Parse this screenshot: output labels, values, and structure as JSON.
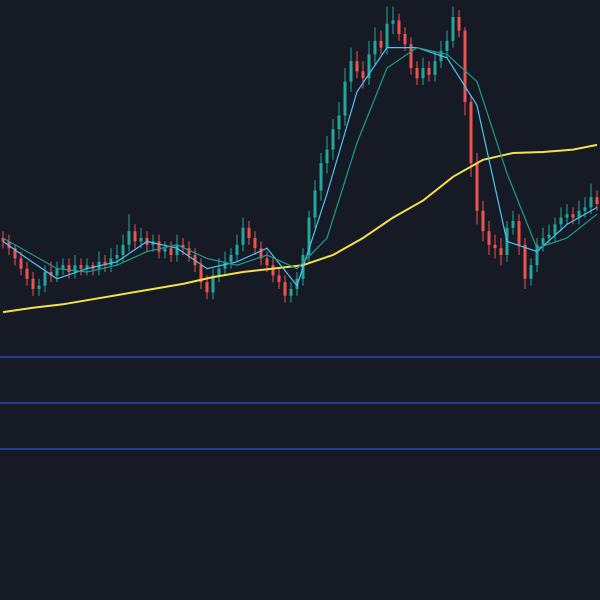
{
  "chart_data": [
    {
      "type": "candlestick",
      "up_color": "#26a69a",
      "down_color": "#ef5350",
      "ylim": [
        0,
        100
      ],
      "open": [
        30,
        29,
        27,
        24,
        21,
        18,
        15,
        16,
        20,
        19,
        21,
        22,
        20,
        22,
        21,
        22,
        21,
        23,
        22,
        24,
        25,
        28,
        32,
        29,
        30,
        28,
        29,
        26,
        27,
        25,
        28,
        27,
        25,
        22,
        17,
        14,
        19,
        21,
        23,
        25,
        28,
        33,
        30,
        27,
        24,
        22,
        19,
        17,
        13,
        15,
        18,
        25,
        36,
        44,
        52,
        56,
        62,
        66,
        76,
        82,
        79,
        77,
        84,
        88,
        86,
        93,
        94,
        90,
        87,
        80,
        77,
        80,
        78,
        82,
        85,
        88,
        95,
        91,
        70,
        52,
        38,
        32,
        28,
        27,
        25,
        33,
        35,
        28,
        18,
        22,
        28,
        30,
        31,
        34,
        36,
        37,
        36,
        38,
        39,
        42
      ],
      "high": [
        32,
        31,
        28,
        26,
        23,
        20,
        18,
        22,
        23,
        23,
        24,
        24,
        25,
        24,
        24,
        23,
        26,
        25,
        27,
        28,
        31,
        37,
        34,
        33,
        32,
        31,
        31,
        29,
        29,
        31,
        30,
        29,
        27,
        24,
        19,
        21,
        24,
        26,
        27,
        31,
        36,
        35,
        32,
        29,
        26,
        24,
        21,
        19,
        17,
        20,
        27,
        38,
        47,
        55,
        60,
        65,
        70,
        80,
        86,
        85,
        82,
        88,
        92,
        91,
        98,
        98,
        96,
        92,
        89,
        82,
        83,
        82,
        85,
        88,
        91,
        98,
        97,
        92,
        72,
        55,
        41,
        35,
        31,
        30,
        35,
        38,
        37,
        30,
        24,
        30,
        33,
        34,
        36,
        39,
        40,
        39,
        41,
        42,
        46,
        44
      ],
      "low": [
        27,
        25,
        22,
        19,
        16,
        13,
        13,
        14,
        17,
        17,
        19,
        18,
        18,
        19,
        19,
        19,
        19,
        20,
        20,
        22,
        23,
        26,
        27,
        27,
        26,
        26,
        24,
        24,
        23,
        23,
        25,
        23,
        20,
        15,
        12,
        12,
        17,
        19,
        21,
        23,
        26,
        28,
        25,
        22,
        20,
        17,
        15,
        11,
        11,
        13,
        16,
        23,
        33,
        41,
        49,
        53,
        59,
        63,
        73,
        77,
        74,
        75,
        81,
        84,
        84,
        90,
        88,
        85,
        78,
        75,
        75,
        76,
        76,
        80,
        83,
        86,
        89,
        66,
        48,
        34,
        29,
        25,
        24,
        22,
        23,
        31,
        25,
        15,
        16,
        20,
        26,
        28,
        29,
        32,
        34,
        34,
        34,
        36,
        37,
        38
      ],
      "close": [
        29,
        27,
        24,
        21,
        18,
        15,
        16,
        20,
        19,
        21,
        22,
        20,
        22,
        21,
        22,
        21,
        23,
        22,
        24,
        25,
        28,
        32,
        29,
        30,
        28,
        29,
        26,
        27,
        25,
        28,
        27,
        25,
        22,
        17,
        14,
        19,
        21,
        23,
        25,
        28,
        33,
        30,
        27,
        24,
        22,
        19,
        17,
        13,
        15,
        18,
        25,
        36,
        44,
        52,
        56,
        62,
        66,
        76,
        82,
        79,
        77,
        84,
        88,
        86,
        93,
        94,
        90,
        87,
        80,
        77,
        80,
        78,
        82,
        85,
        88,
        95,
        91,
        70,
        52,
        38,
        32,
        28,
        27,
        25,
        33,
        35,
        28,
        18,
        22,
        28,
        30,
        31,
        34,
        36,
        37,
        36,
        38,
        39,
        42,
        40
      ],
      "series": [
        {
          "color": "#f5e04a",
          "x": [
            0,
            5,
            10,
            15,
            20,
            25,
            30,
            35,
            40,
            45,
            50,
            55,
            60,
            65,
            70,
            75,
            80,
            85,
            90,
            95,
            99
          ],
          "values": [
            8.2,
            9.5,
            10.5,
            12,
            13.5,
            15,
            16.5,
            18.5,
            20,
            21,
            22,
            25,
            30,
            36,
            41,
            48,
            53,
            55,
            55.3,
            56,
            57.4
          ]
        },
        {
          "color": "#4fc3f7",
          "x": [
            0,
            4,
            9,
            14,
            19,
            24,
            29,
            34,
            39,
            44,
            49,
            54,
            59,
            64,
            69,
            74,
            79,
            84,
            89,
            94,
            99
          ],
          "values": [
            29,
            24,
            18,
            21,
            23,
            29,
            27,
            21,
            23,
            27,
            16,
            43,
            73,
            86,
            86,
            83,
            69,
            29,
            26,
            34,
            39
          ]
        },
        {
          "color": "#1e9c8c",
          "x": [
            0,
            4,
            9,
            14,
            19,
            24,
            29,
            34,
            39,
            44,
            49,
            54,
            59,
            64,
            69,
            74,
            79,
            84,
            89,
            94,
            99
          ],
          "values": [
            30,
            26,
            21,
            20,
            22,
            26,
            28,
            24,
            22,
            25,
            21,
            30,
            58,
            80,
            86,
            84,
            76,
            49,
            27,
            30,
            37
          ]
        }
      ]
    },
    {
      "type": "levels",
      "color": "#2962ff",
      "ylim": [
        0,
        100
      ],
      "levels": [
        70,
        50,
        30
      ]
    }
  ]
}
